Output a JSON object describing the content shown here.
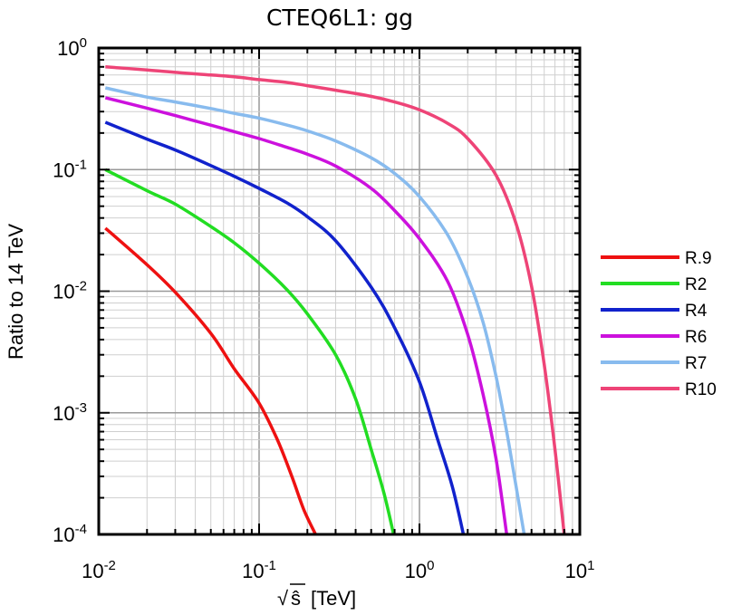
{
  "chart_data": {
    "type": "line",
    "title": "CTEQ6L1: gg",
    "xlabel": "[TeV]",
    "xlabel_root_symbol": "√",
    "xlabel_var": "ŝ",
    "ylabel": "Ratio to 14 TeV",
    "x_scale": "log",
    "y_scale": "log",
    "xlim": [
      0.01,
      10
    ],
    "ylim": [
      0.0001,
      1
    ],
    "grid": true,
    "legend_position": "right",
    "x_ticks": [
      {
        "base": "10",
        "exp": "-2"
      },
      {
        "base": "10",
        "exp": "-1"
      },
      {
        "base": "10",
        "exp": "0"
      },
      {
        "base": "10",
        "exp": "1"
      }
    ],
    "y_ticks": [
      {
        "base": "10",
        "exp": "0",
        "value": 1
      },
      {
        "base": "10",
        "exp": "-1",
        "value": 0.1
      },
      {
        "base": "10",
        "exp": "-2",
        "value": 0.01
      },
      {
        "base": "10",
        "exp": "-3",
        "value": 0.001
      },
      {
        "base": "10",
        "exp": "-4",
        "value": 0.0001
      }
    ],
    "series": [
      {
        "name": "R.9",
        "color": "#ee1111",
        "points": [
          [
            0.011,
            0.033
          ],
          [
            0.02,
            0.0165
          ],
          [
            0.03,
            0.0098
          ],
          [
            0.05,
            0.0045
          ],
          [
            0.07,
            0.0023
          ],
          [
            0.1,
            0.0012
          ],
          [
            0.13,
            0.0006
          ],
          [
            0.16,
            0.0003
          ],
          [
            0.19,
            0.00016
          ],
          [
            0.225,
            0.0001
          ]
        ]
      },
      {
        "name": "R2",
        "color": "#22dd22",
        "points": [
          [
            0.011,
            0.1
          ],
          [
            0.02,
            0.067
          ],
          [
            0.03,
            0.052
          ],
          [
            0.05,
            0.034
          ],
          [
            0.07,
            0.025
          ],
          [
            0.1,
            0.017
          ],
          [
            0.15,
            0.0102
          ],
          [
            0.2,
            0.0065
          ],
          [
            0.3,
            0.003
          ],
          [
            0.4,
            0.0013
          ],
          [
            0.5,
            0.0005
          ],
          [
            0.6,
            0.00022
          ],
          [
            0.69,
            0.0001
          ]
        ]
      },
      {
        "name": "R4",
        "color": "#1122cc",
        "points": [
          [
            0.011,
            0.245
          ],
          [
            0.02,
            0.178
          ],
          [
            0.03,
            0.145
          ],
          [
            0.05,
            0.108
          ],
          [
            0.07,
            0.088
          ],
          [
            0.1,
            0.07
          ],
          [
            0.15,
            0.053
          ],
          [
            0.2,
            0.041
          ],
          [
            0.3,
            0.026
          ],
          [
            0.5,
            0.0108
          ],
          [
            0.7,
            0.005
          ],
          [
            1.0,
            0.0018
          ],
          [
            1.3,
            0.0006
          ],
          [
            1.6,
            0.00025
          ],
          [
            1.88,
            0.0001
          ]
        ]
      },
      {
        "name": "R6",
        "color": "#cc11dd",
        "points": [
          [
            0.011,
            0.39
          ],
          [
            0.02,
            0.32
          ],
          [
            0.03,
            0.278
          ],
          [
            0.05,
            0.232
          ],
          [
            0.07,
            0.205
          ],
          [
            0.1,
            0.18
          ],
          [
            0.15,
            0.152
          ],
          [
            0.2,
            0.134
          ],
          [
            0.3,
            0.107
          ],
          [
            0.5,
            0.07
          ],
          [
            0.7,
            0.046
          ],
          [
            1.0,
            0.027
          ],
          [
            1.5,
            0.012
          ],
          [
            2.0,
            0.0044
          ],
          [
            2.5,
            0.0014
          ],
          [
            3.0,
            0.00042
          ],
          [
            3.5,
            0.0001
          ]
        ]
      },
      {
        "name": "R7",
        "color": "#88bbee",
        "points": [
          [
            0.011,
            0.47
          ],
          [
            0.02,
            0.395
          ],
          [
            0.03,
            0.36
          ],
          [
            0.05,
            0.318
          ],
          [
            0.07,
            0.29
          ],
          [
            0.1,
            0.265
          ],
          [
            0.15,
            0.232
          ],
          [
            0.2,
            0.208
          ],
          [
            0.3,
            0.172
          ],
          [
            0.5,
            0.125
          ],
          [
            0.7,
            0.093
          ],
          [
            1.0,
            0.06
          ],
          [
            1.5,
            0.029
          ],
          [
            2.0,
            0.013
          ],
          [
            2.5,
            0.0055
          ],
          [
            3.0,
            0.002
          ],
          [
            3.5,
            0.0007
          ],
          [
            4.0,
            0.00025
          ],
          [
            4.5,
            0.0001
          ]
        ]
      },
      {
        "name": "R10",
        "color": "#ee4477",
        "points": [
          [
            0.011,
            0.7
          ],
          [
            0.02,
            0.66
          ],
          [
            0.03,
            0.63
          ],
          [
            0.05,
            0.6
          ],
          [
            0.07,
            0.58
          ],
          [
            0.1,
            0.55
          ],
          [
            0.15,
            0.52
          ],
          [
            0.2,
            0.49
          ],
          [
            0.3,
            0.45
          ],
          [
            0.5,
            0.4
          ],
          [
            0.7,
            0.36
          ],
          [
            1.0,
            0.31
          ],
          [
            1.5,
            0.24
          ],
          [
            2.0,
            0.18
          ],
          [
            3.0,
            0.09
          ],
          [
            4.0,
            0.036
          ],
          [
            5.0,
            0.011
          ],
          [
            6.0,
            0.0025
          ],
          [
            7.0,
            0.0005
          ],
          [
            8.0,
            0.0001
          ]
        ]
      }
    ]
  }
}
